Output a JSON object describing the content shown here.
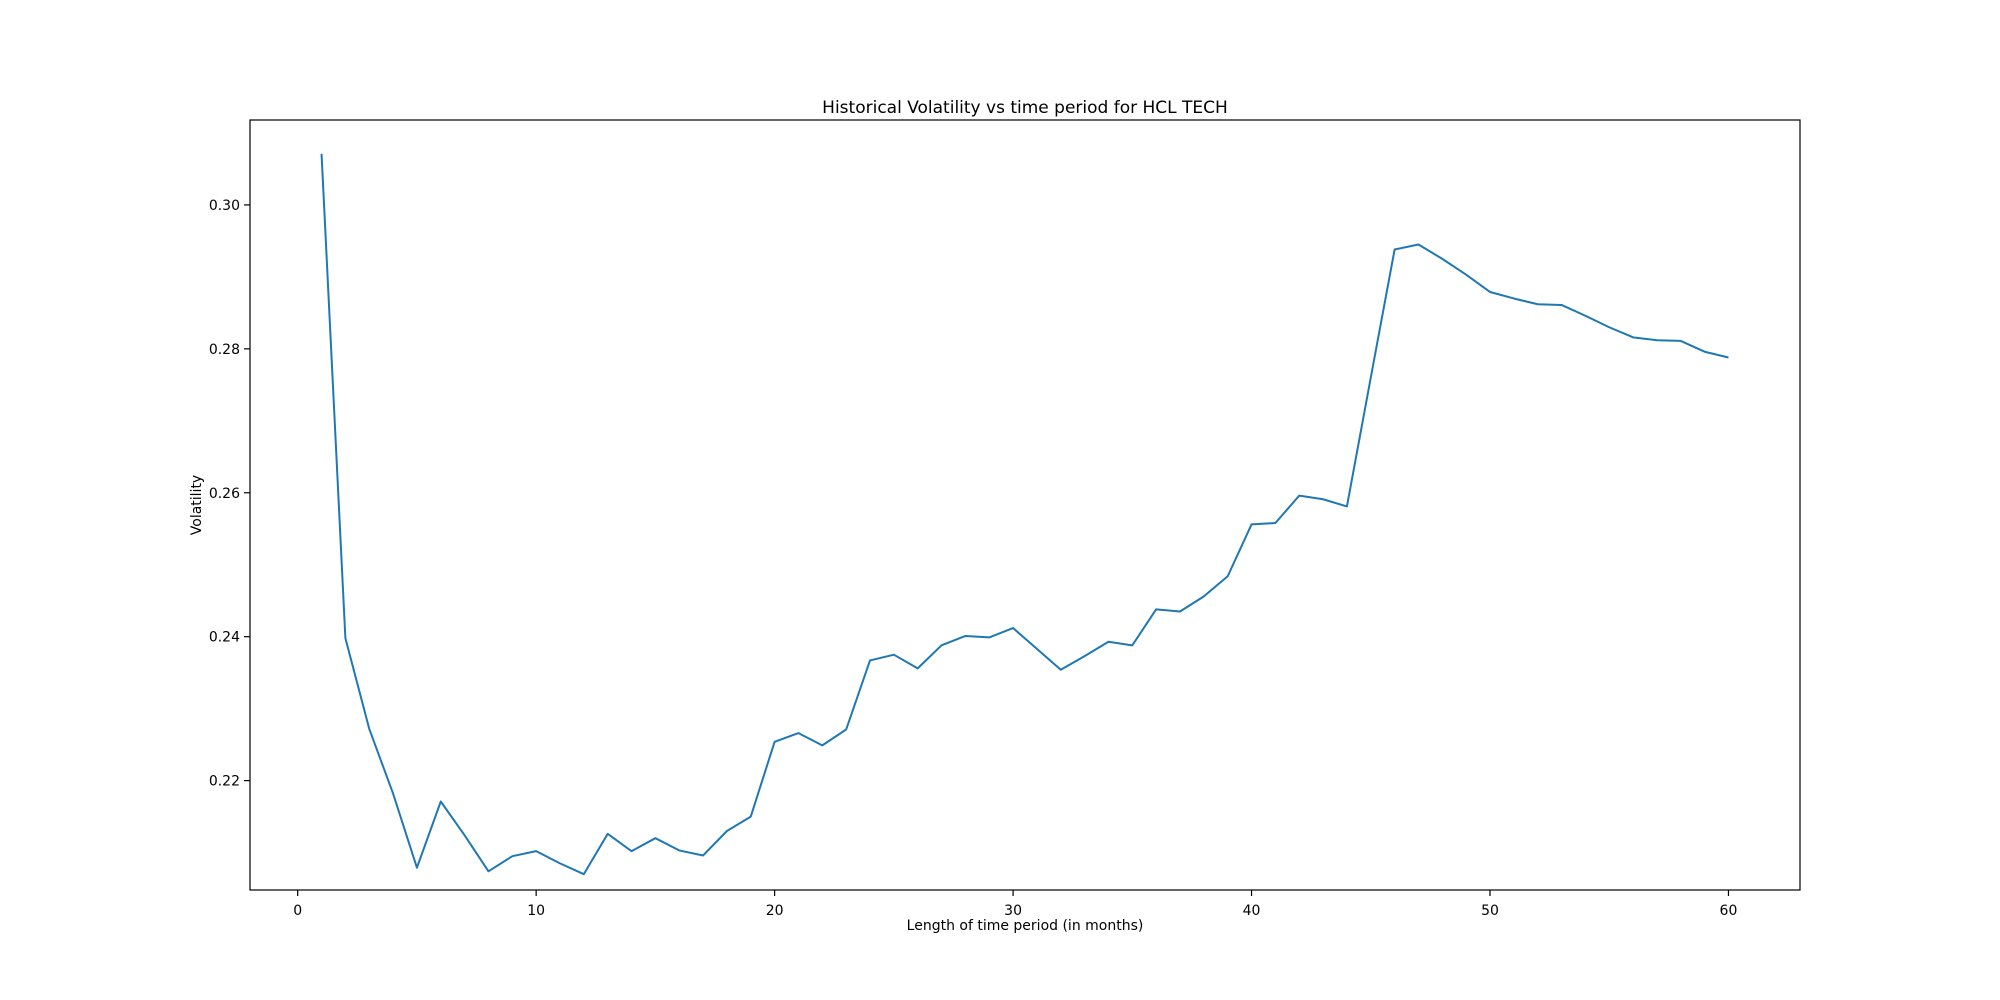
{
  "chart_data": {
    "type": "line",
    "title": "Historical Volatility vs time period for HCL TECH",
    "xlabel": "Length of time period (in months)",
    "ylabel": "Volatility",
    "xlim": [
      -2,
      63
    ],
    "ylim": [
      0.2048,
      0.3118
    ],
    "xticks": [
      0,
      10,
      20,
      30,
      40,
      50,
      60
    ],
    "yticks": [
      0.22,
      0.24,
      0.26,
      0.28,
      0.3
    ],
    "ytick_labels": [
      "0.22",
      "0.24",
      "0.26",
      "0.28",
      "0.30"
    ],
    "grid": false,
    "line_color": "#1f77b4",
    "series": [
      {
        "x": [
          1,
          2,
          3,
          4,
          5,
          6,
          7,
          8,
          9,
          10,
          11,
          12,
          13,
          14,
          15,
          16,
          17,
          18,
          19,
          20,
          21,
          22,
          23,
          24,
          25,
          26,
          27,
          28,
          29,
          30,
          31,
          32,
          33,
          34,
          35,
          36,
          37,
          38,
          39,
          40,
          41,
          42,
          43,
          44,
          45,
          46,
          47,
          48,
          49,
          50,
          51,
          52,
          53,
          54,
          55,
          56,
          57,
          58,
          59,
          60
        ],
        "values": [
          0.3071,
          0.2398,
          0.2272,
          0.2182,
          0.2079,
          0.2171,
          0.2124,
          0.2074,
          0.2095,
          0.2102,
          0.2085,
          0.207,
          0.2126,
          0.2102,
          0.212,
          0.2103,
          0.2096,
          0.213,
          0.215,
          0.2254,
          0.2266,
          0.2249,
          0.2271,
          0.2367,
          0.2375,
          0.2356,
          0.2388,
          0.2401,
          0.2399,
          0.2412,
          0.2383,
          0.2354,
          0.2373,
          0.2393,
          0.2388,
          0.2438,
          0.2435,
          0.2456,
          0.2484,
          0.2556,
          0.2558,
          0.2596,
          0.2591,
          0.2581,
          0.276,
          0.2938,
          0.2945,
          0.2925,
          0.2903,
          0.2879,
          0.287,
          0.2862,
          0.2861,
          0.2846,
          0.283,
          0.2816,
          0.2812,
          0.2811,
          0.2796,
          0.2788
        ]
      }
    ]
  }
}
